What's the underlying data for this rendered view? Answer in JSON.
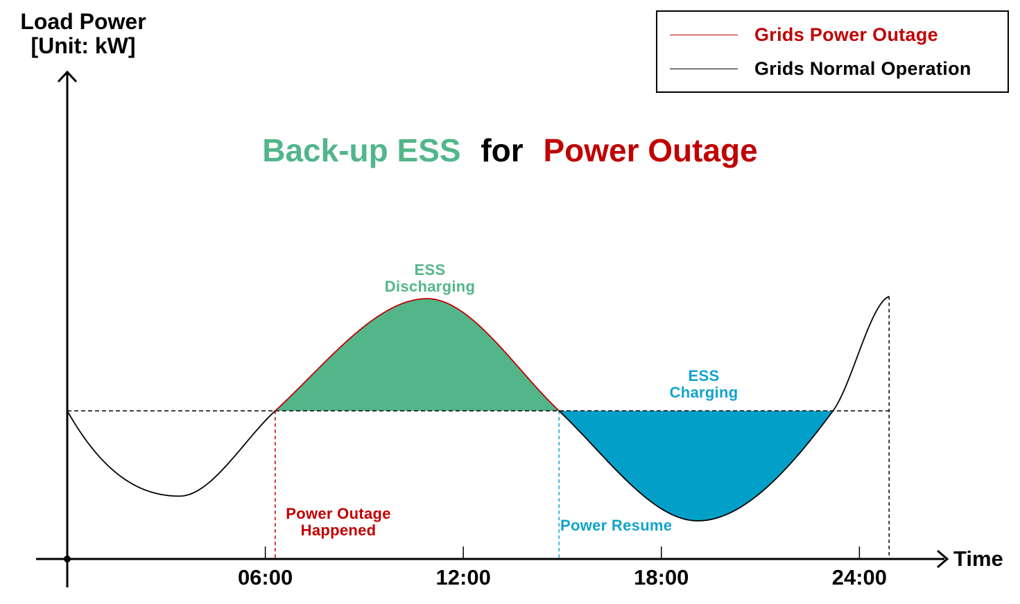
{
  "chart_data": {
    "type": "area",
    "title_parts": [
      {
        "text": "Back-up ESS",
        "color": "#52b68a"
      },
      {
        "text": "for",
        "color": "#000000"
      },
      {
        "text": "Power Outage",
        "color": "#c00000"
      }
    ],
    "ylabel_lines": [
      "Load Power",
      "[Unit: kW]"
    ],
    "xlabel": "Time",
    "x_ticks": [
      {
        "label": "06:00",
        "x": 6
      },
      {
        "label": "12:00",
        "x": 12
      },
      {
        "label": "18:00",
        "x": 18
      },
      {
        "label": "24:00",
        "x": 24
      }
    ],
    "xlim": [
      0,
      24.9
    ],
    "baseline_level": 0.66,
    "curve": {
      "x": [
        0,
        3.4,
        6.3,
        10.9,
        14.9,
        19.1,
        23.2,
        24.9
      ],
      "y": [
        0.66,
        0.28,
        0.66,
        1.16,
        0.66,
        0.17,
        0.66,
        1.17
      ]
    },
    "events": [
      {
        "x": 6.3,
        "label_lines": [
          "Power Outage",
          "Happened"
        ],
        "color": "#c00000"
      },
      {
        "x": 14.9,
        "label_lines": [
          "Power Resume"
        ],
        "color": "#11a3cc"
      }
    ],
    "regions": [
      {
        "name": "discharge",
        "x_start": 6.3,
        "x_end": 14.9,
        "color": "#52b68a",
        "label_lines": [
          "ESS",
          "Discharging"
        ],
        "label_color": "#52b68a"
      },
      {
        "name": "charge",
        "x_start": 14.9,
        "x_end": 23.2,
        "color": "#02a0c8",
        "label_lines": [
          "ESS",
          "Charging"
        ],
        "label_color": "#11a3cc"
      }
    ],
    "legend": [
      {
        "label": "Grids Power Outage",
        "color": "#c00000"
      },
      {
        "label": "Grids Normal Operation",
        "color": "#000000"
      }
    ],
    "legend_position": "top-right",
    "grid": false
  }
}
